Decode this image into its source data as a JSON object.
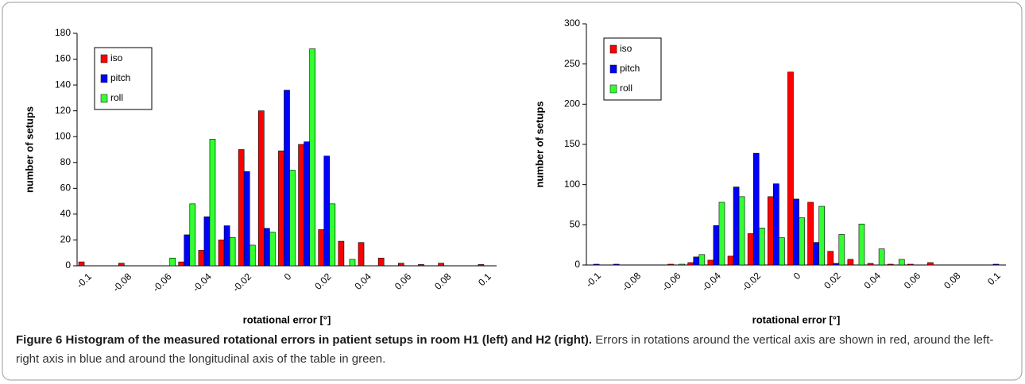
{
  "chart_data": [
    {
      "type": "bar",
      "categories": [
        "-0.1",
        null,
        "-0.08",
        null,
        "-0.06",
        null,
        "-0.04",
        null,
        "-0.02",
        null,
        "0",
        null,
        "0.02",
        null,
        "0.04",
        null,
        "0.06",
        null,
        "0.08",
        null,
        "0.1"
      ],
      "series": [
        {
          "name": "iso",
          "color": "#ff0000",
          "values": [
            3,
            0,
            2,
            0,
            0,
            3,
            12,
            20,
            90,
            120,
            89,
            94,
            28,
            19,
            18,
            6,
            2,
            1,
            2,
            0,
            1
          ]
        },
        {
          "name": "pitch",
          "color": "#0000ff",
          "values": [
            0,
            0,
            0,
            0,
            0,
            24,
            38,
            31,
            73,
            29,
            136,
            96,
            85,
            0,
            0,
            0,
            0,
            0,
            0,
            0,
            0
          ]
        },
        {
          "name": "roll",
          "color": "#33ff33",
          "values": [
            0,
            0,
            0,
            0,
            6,
            48,
            98,
            22,
            16,
            26,
            74,
            168,
            48,
            5,
            0,
            0,
            0,
            0,
            0,
            0,
            0
          ]
        }
      ],
      "xlabel": "rotational error [°]",
      "ylabel": "number of setups",
      "ylim": [
        0,
        180
      ],
      "yticks": [
        0,
        20,
        40,
        60,
        80,
        100,
        120,
        140,
        160,
        180
      ],
      "grid": false,
      "legend": "top-left"
    },
    {
      "type": "bar",
      "categories": [
        "-0.1",
        null,
        "-0.08",
        null,
        "-0.06",
        null,
        "-0.04",
        null,
        "-0.02",
        null,
        "0",
        null,
        "0.02",
        null,
        "0.04",
        null,
        "0.06",
        null,
        "0.08",
        null,
        "0.1"
      ],
      "series": [
        {
          "name": "iso",
          "color": "#ff0000",
          "values": [
            0,
            0,
            0,
            0,
            1,
            3,
            6,
            11,
            39,
            85,
            240,
            78,
            17,
            7,
            2,
            1,
            1,
            3,
            0,
            0,
            0
          ]
        },
        {
          "name": "pitch",
          "color": "#0000ff",
          "values": [
            1,
            1,
            0,
            0,
            0,
            10,
            49,
            97,
            139,
            101,
            82,
            28,
            2,
            0,
            0,
            0,
            0,
            0,
            0,
            0,
            1
          ]
        },
        {
          "name": "roll",
          "color": "#33ff33",
          "values": [
            0,
            0,
            0,
            0,
            1,
            13,
            78,
            85,
            46,
            34,
            59,
            73,
            38,
            51,
            20,
            7,
            0,
            0,
            0,
            0,
            0
          ]
        }
      ],
      "xlabel": "rotational error [°]",
      "ylabel": "number of setups",
      "ylim": [
        0,
        300
      ],
      "yticks": [
        0,
        50,
        100,
        150,
        200,
        250,
        300
      ],
      "grid": false,
      "legend": "top-left"
    }
  ],
  "caption": {
    "title": "Figure 6 Histogram of the measured rotational errors in patient setups in room H1 (left) and H2 (right).",
    "text": "Errors in rotations around the vertical axis are shown in red, around the left-right axis in blue and around the longitudinal axis of the table in green."
  }
}
